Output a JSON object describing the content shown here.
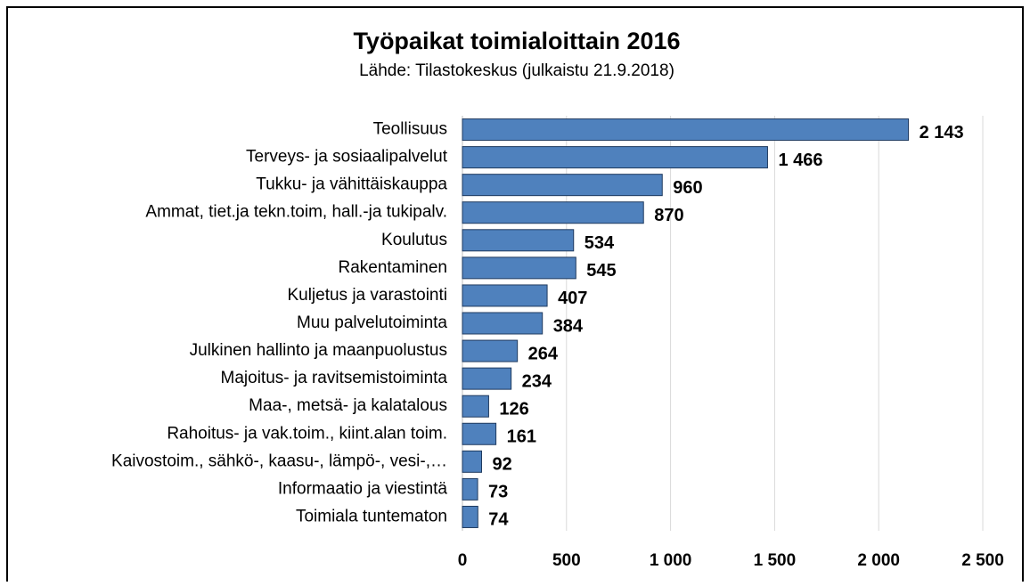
{
  "chart_data": {
    "type": "barh",
    "title": "Työpaikat toimialoittain 2016",
    "subtitle": "Lähde: Tilastokeskus (julkaistu 21.9.2018)",
    "categories": [
      "Teollisuus",
      "Terveys- ja sosiaalipalvelut",
      "Tukku- ja vähittäiskauppa",
      "Ammat, tiet.ja tekn.toim, hall.-ja tukipalv.",
      "Koulutus",
      "Rakentaminen",
      "Kuljetus ja varastointi",
      "Muu palvelutoiminta",
      "Julkinen hallinto ja maanpuolustus",
      "Majoitus- ja ravitsemistoiminta",
      "Maa-, metsä- ja kalatalous",
      "Rahoitus- ja vak.toim., kiint.alan toim.",
      "Kaivostoim., sähkö-, kaasu-, lämpö-, vesi-,…",
      "Informaatio ja viestintä",
      "Toimiala tuntematon"
    ],
    "values": [
      2143,
      1466,
      960,
      870,
      534,
      545,
      407,
      384,
      264,
      234,
      126,
      161,
      92,
      73,
      74
    ],
    "value_labels": [
      "2 143",
      "1 466",
      "960",
      "870",
      "534",
      "545",
      "407",
      "384",
      "264",
      "234",
      "126",
      "161",
      "92",
      "73",
      "74"
    ],
    "color": "#4f81bd",
    "xlim": [
      0,
      2500
    ],
    "xticks": [
      0,
      500,
      {
        "value": 1000,
        "label": "1 000"
      },
      {
        "value": 1500,
        "label": "1 500"
      },
      {
        "value": 2000,
        "label": "2 000"
      },
      {
        "value": 2500,
        "label": "2 500"
      }
    ],
    "grid": true
  }
}
